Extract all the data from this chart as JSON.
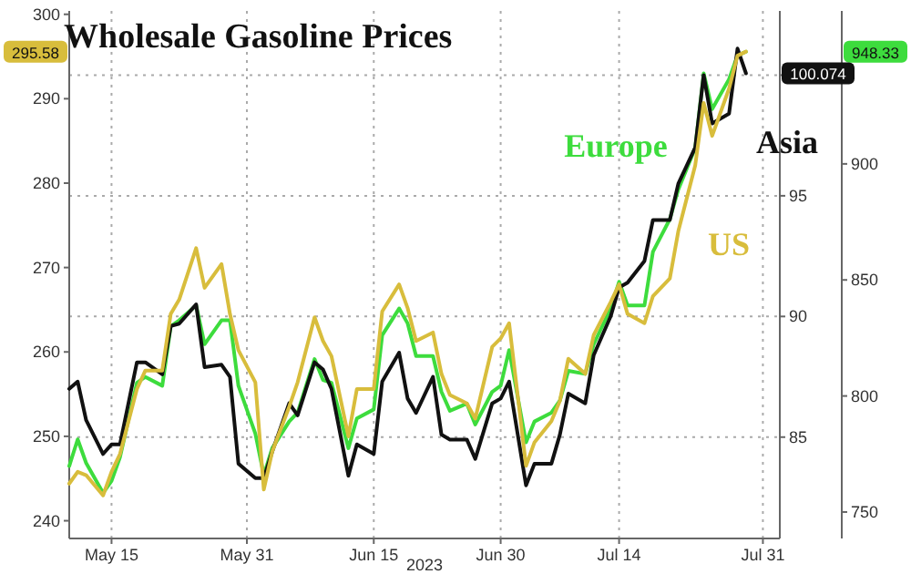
{
  "chart_data": {
    "type": "line",
    "title": "Wholesale Gasoline Prices",
    "xlabel": "2023",
    "x": [
      "2023-05-10",
      "2023-05-11",
      "2023-05-12",
      "2023-05-14",
      "2023-05-15",
      "2023-05-16",
      "2023-05-18",
      "2023-05-19",
      "2023-05-21",
      "2023-05-22",
      "2023-05-23",
      "2023-05-25",
      "2023-05-26",
      "2023-05-28",
      "2023-05-29",
      "2023-05-30",
      "2023-06-01",
      "2023-06-02",
      "2023-06-03",
      "2023-06-05",
      "2023-06-06",
      "2023-06-08",
      "2023-06-09",
      "2023-06-10",
      "2023-06-12",
      "2023-06-13",
      "2023-06-15",
      "2023-06-16",
      "2023-06-18",
      "2023-06-19",
      "2023-06-20",
      "2023-06-22",
      "2023-06-23",
      "2023-06-24",
      "2023-06-26",
      "2023-06-27",
      "2023-06-29",
      "2023-06-30",
      "2023-07-01",
      "2023-07-03",
      "2023-07-04",
      "2023-07-06",
      "2023-07-07",
      "2023-07-08",
      "2023-07-10",
      "2023-07-11",
      "2023-07-13",
      "2023-07-14",
      "2023-07-15",
      "2023-07-17",
      "2023-07-18",
      "2023-07-20",
      "2023-07-21",
      "2023-07-23",
      "2023-07-24",
      "2023-07-25",
      "2023-07-27",
      "2023-07-28",
      "2023-07-29"
    ],
    "series": [
      {
        "name": "Europe",
        "color": "#3ddc3d",
        "axis": "y3",
        "values": [
          769.8,
          781.3,
          771.1,
          758.2,
          763.4,
          773.6,
          805.7,
          808.2,
          804.4,
          830,
          832.6,
          839,
          822.3,
          832.6,
          832.6,
          804.4,
          783.8,
          765.9,
          777.5,
          789,
          792.8,
          815.9,
          806.9,
          805.7,
          777.5,
          790.3,
          794.2,
          826.2,
          837.7,
          831.3,
          817.2,
          817.2,
          801.8,
          793.6,
          796.7,
          787.7,
          801.8,
          804.4,
          819.8,
          780,
          789,
          792.8,
          798,
          810.8,
          809.5,
          822.3,
          837.7,
          849.2,
          839,
          839,
          862.1,
          876.2,
          889,
          906.9,
          939,
          923.6,
          936.5,
          946.7,
          948.33
        ]
      },
      {
        "name": "Asia",
        "color": "#111111",
        "axis": "y2",
        "values": [
          87.0,
          87.3,
          85.7,
          84.3,
          84.7,
          84.7,
          88.1,
          88.1,
          87.6,
          89.6,
          89.7,
          90.5,
          87.9,
          88.0,
          87.5,
          83.9,
          83.3,
          83.3,
          84.4,
          86.4,
          85.9,
          88.1,
          87.8,
          87.0,
          83.4,
          84.7,
          84.3,
          87.3,
          88.5,
          86.6,
          86.0,
          87.5,
          85.1,
          84.9,
          84.9,
          84.1,
          86.4,
          86.6,
          87.3,
          83.0,
          83.9,
          83.9,
          85.1,
          86.8,
          86.4,
          88.4,
          90.0,
          91.2,
          91.4,
          92.3,
          94.0,
          94.0,
          95.5,
          97.0,
          100.0,
          98.0,
          98.4,
          101.1,
          100.074
        ]
      },
      {
        "name": "US",
        "color": "#d8bd3c",
        "axis": "y",
        "values": [
          244.4,
          245.8,
          245.4,
          243.0,
          245.8,
          247.9,
          255.6,
          257.8,
          257.8,
          264.5,
          266.2,
          272.3,
          267.6,
          270.4,
          264.5,
          260.2,
          256.4,
          243.7,
          248.2,
          253.5,
          256.4,
          264.1,
          261.3,
          259.5,
          250.0,
          255.6,
          255.6,
          264.8,
          268.0,
          265.2,
          261.3,
          262.3,
          257.4,
          254.9,
          253.9,
          252.1,
          260.6,
          261.6,
          263.4,
          246.5,
          249.3,
          251.8,
          254.2,
          259.2,
          257.4,
          262.0,
          265.9,
          268.0,
          264.5,
          263.4,
          266.6,
          268.7,
          274.3,
          282.1,
          289.5,
          285.6,
          291.2,
          295.1,
          295.58
        ]
      }
    ],
    "xlim": [
      "2023-05-10",
      "2023-08-02"
    ],
    "xticks": [
      {
        "value": "2023-05-15",
        "label": "May 15"
      },
      {
        "value": "2023-05-31",
        "label": "May 31"
      },
      {
        "value": "2023-06-15",
        "label": "Jun 15"
      },
      {
        "value": "2023-06-30",
        "label": "Jun 30"
      },
      {
        "value": "2023-07-14",
        "label": "Jul 14"
      },
      {
        "value": "2023-07-31",
        "label": "Jul 31"
      }
    ],
    "ylim": [
      237.9,
      300.4
    ],
    "yticks": [
      240,
      250,
      260,
      270,
      280,
      290,
      300
    ],
    "y2lim": [
      80.8,
      102.66
    ],
    "y2ticks": [
      85,
      90,
      95,
      {
        "value": 100,
        "label": null
      }
    ],
    "y3lim": [
      738.6,
      965.9
    ],
    "y3ticks": [
      750,
      800,
      850,
      900
    ],
    "annotations": [
      "948.33",
      "100.074",
      "295.58"
    ],
    "grid": true
  }
}
